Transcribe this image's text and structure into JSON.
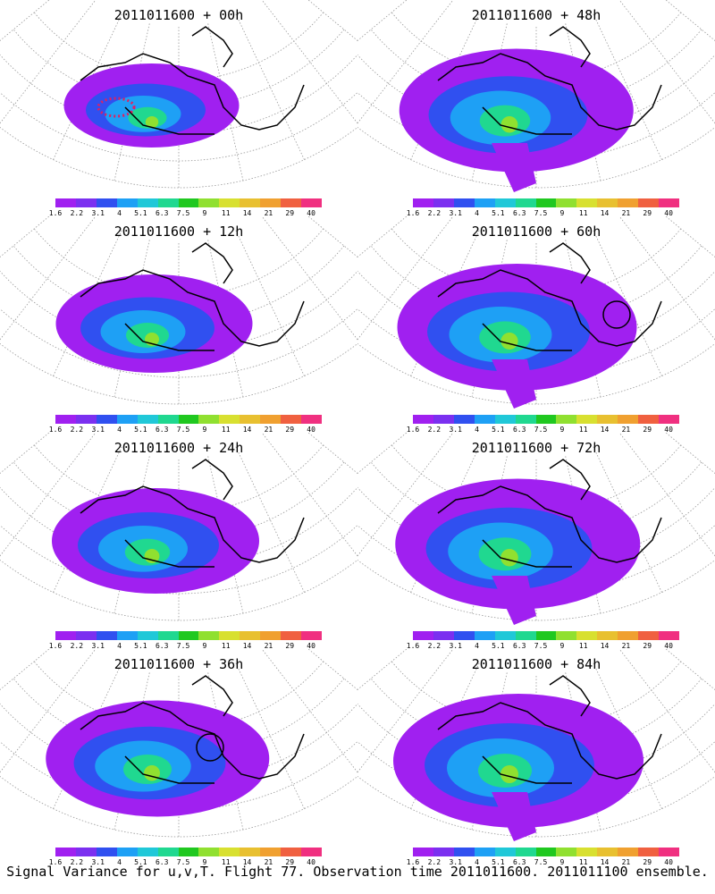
{
  "panels": [
    {
      "title": "2011011600 + 00h",
      "col": 0,
      "row": 0,
      "level": 0.3,
      "circle": false
    },
    {
      "title": "2011011600 + 48h",
      "col": 1,
      "row": 0,
      "level": 0.85,
      "circle": false
    },
    {
      "title": "2011011600 + 12h",
      "col": 0,
      "row": 1,
      "level": 0.5,
      "circle": false
    },
    {
      "title": "2011011600 + 60h",
      "col": 1,
      "row": 1,
      "level": 0.9,
      "circle": true
    },
    {
      "title": "2011011600 + 24h",
      "col": 0,
      "row": 2,
      "level": 0.6,
      "circle": false
    },
    {
      "title": "2011011600 + 72h",
      "col": 1,
      "row": 2,
      "level": 0.95,
      "circle": false
    },
    {
      "title": "2011011600 + 36h",
      "col": 0,
      "row": 3,
      "level": 0.75,
      "circle": true
    },
    {
      "title": "2011011600 + 84h",
      "col": 1,
      "row": 3,
      "level": 1.0,
      "circle": false
    }
  ],
  "colorbar": {
    "colors": [
      "#a020f0",
      "#7b30f0",
      "#3050f0",
      "#1ea0f5",
      "#20c8d8",
      "#20d890",
      "#20c820",
      "#90e030",
      "#d8e030",
      "#e8c030",
      "#f0a030",
      "#f06040",
      "#f03080"
    ],
    "labels": [
      "1.6",
      "2.2",
      "3.1",
      "4",
      "5.1",
      "6.3",
      "7.5",
      "9",
      "11",
      "14",
      "21",
      "29",
      "40"
    ]
  },
  "footer": "Signal Variance for u,v,T. Flight 77. Observation time 2011011600. 2011011100 ensemble."
}
